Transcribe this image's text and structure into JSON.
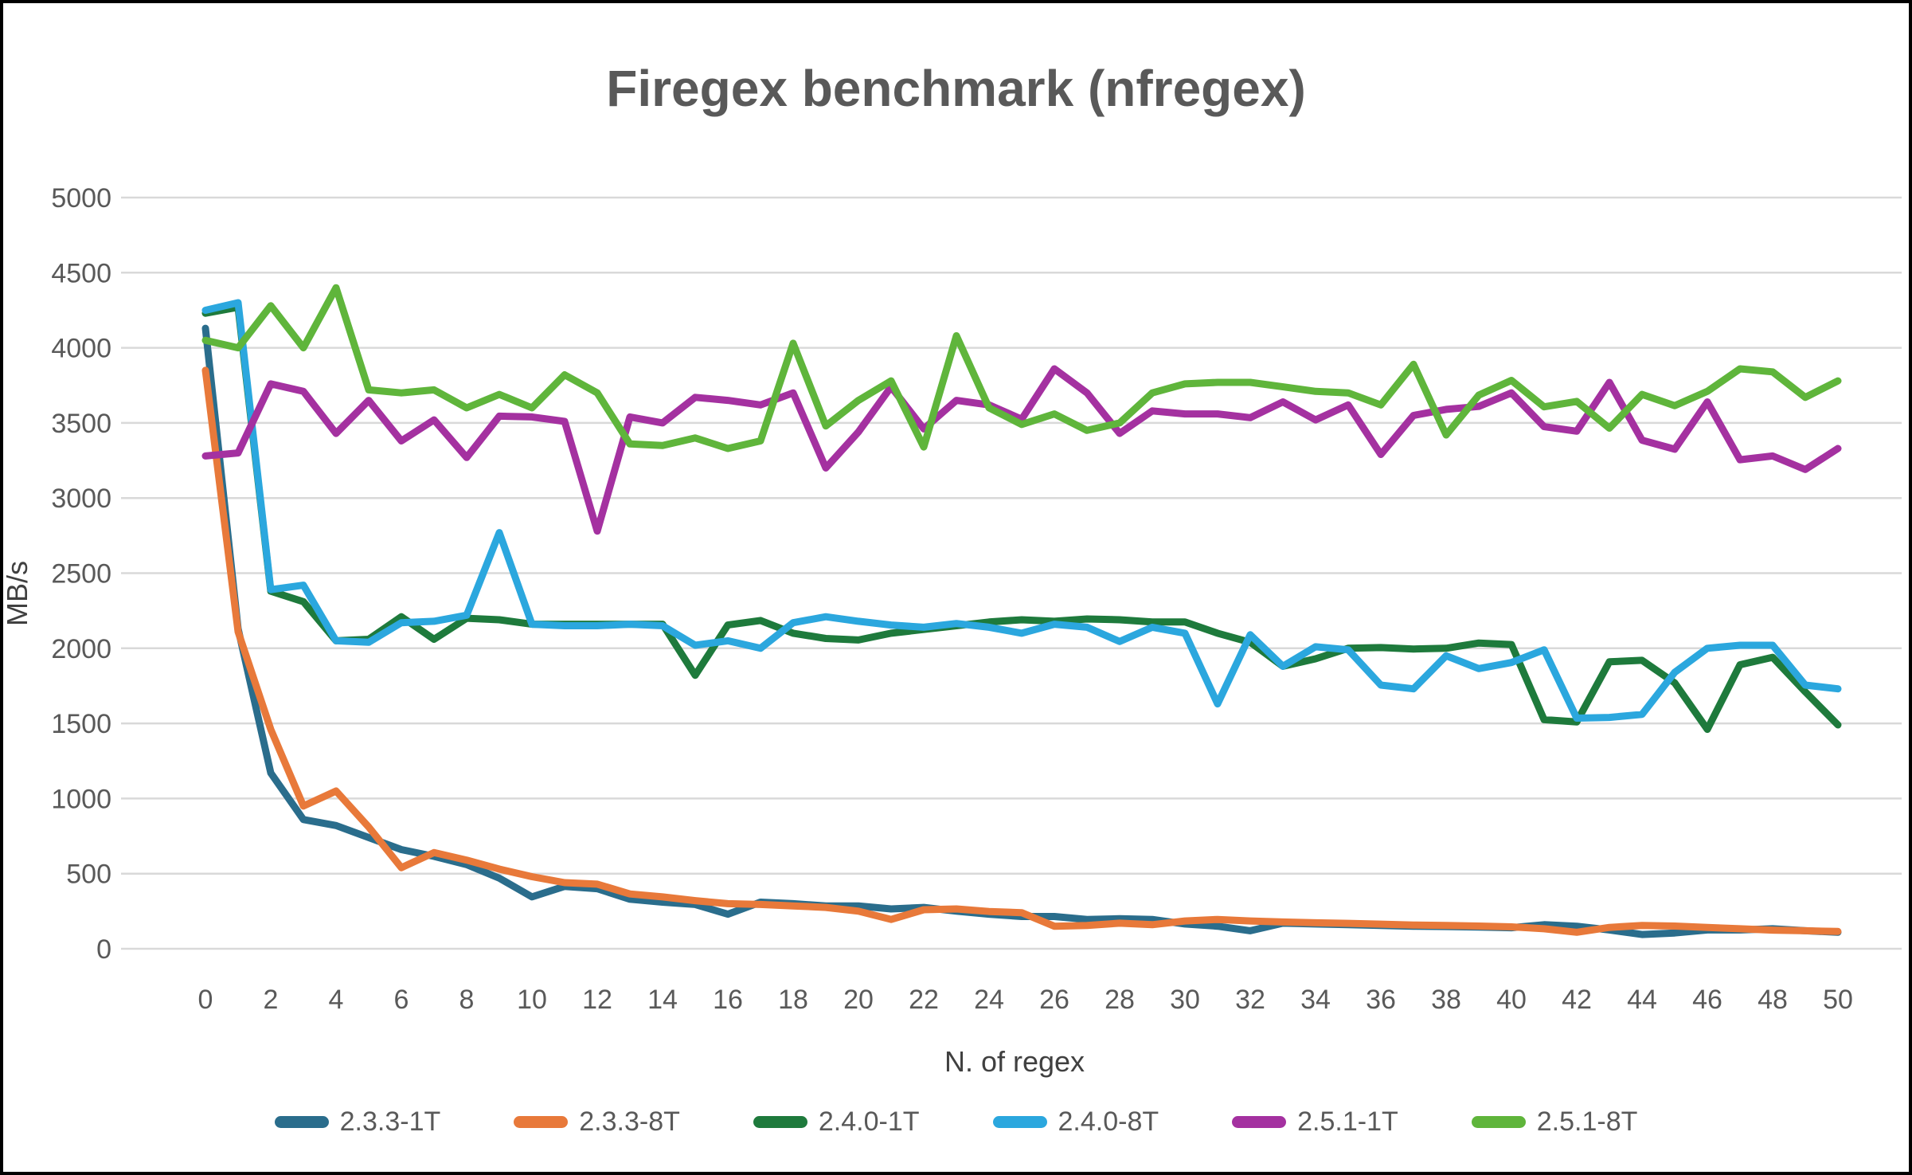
{
  "chart_data": {
    "type": "line",
    "title": "Firegex benchmark (nfregex)",
    "ylabel": "MB/s",
    "xlabel": "N. of regex",
    "ylim": [
      0,
      5000
    ],
    "xlim": [
      0,
      50
    ],
    "grid": "horizontal",
    "legend_position": "bottom",
    "ytick_labels": [
      "0",
      "500",
      "1000",
      "1500",
      "2000",
      "2500",
      "3000",
      "3500",
      "4000",
      "4500",
      "5000"
    ],
    "xtick_labels": [
      "0",
      "2",
      "4",
      "6",
      "8",
      "10",
      "12",
      "14",
      "16",
      "18",
      "20",
      "22",
      "24",
      "26",
      "28",
      "30",
      "32",
      "34",
      "36",
      "38",
      "40",
      "42",
      "44",
      "46",
      "48",
      "50"
    ],
    "x": [
      0,
      1,
      2,
      3,
      4,
      5,
      6,
      7,
      8,
      9,
      10,
      11,
      12,
      13,
      14,
      15,
      16,
      17,
      18,
      19,
      20,
      21,
      22,
      23,
      24,
      25,
      26,
      27,
      28,
      29,
      30,
      31,
      32,
      33,
      34,
      35,
      36,
      37,
      38,
      39,
      40,
      41,
      42,
      43,
      44,
      45,
      46,
      47,
      48,
      49,
      50
    ],
    "series": [
      {
        "name": "2.3.3-1T",
        "color": "#2A6D8C",
        "values": [
          4130,
          2130,
          1170,
          860,
          820,
          740,
          660,
          615,
          560,
          470,
          345,
          415,
          400,
          330,
          310,
          295,
          230,
          310,
          300,
          285,
          285,
          265,
          275,
          250,
          230,
          215,
          215,
          195,
          200,
          195,
          165,
          150,
          120,
          170,
          165,
          160,
          155,
          150,
          148,
          145,
          140,
          160,
          150,
          125,
          95,
          105,
          125,
          125,
          133,
          120,
          110
        ]
      },
      {
        "name": "2.3.3-8T",
        "color": "#E8793A",
        "values": [
          3850,
          2110,
          1460,
          950,
          1050,
          810,
          540,
          640,
          590,
          530,
          480,
          440,
          430,
          365,
          345,
          320,
          300,
          295,
          285,
          275,
          250,
          195,
          260,
          265,
          248,
          240,
          150,
          155,
          170,
          160,
          185,
          195,
          185,
          178,
          173,
          169,
          164,
          158,
          155,
          151,
          146,
          133,
          110,
          142,
          155,
          151,
          142,
          133,
          124,
          120,
          115
        ]
      },
      {
        "name": "2.4.0-1T",
        "color": "#1E7A3C",
        "values": [
          4230,
          4270,
          2380,
          2310,
          2050,
          2060,
          2210,
          2060,
          2200,
          2190,
          2160,
          2160,
          2160,
          2160,
          2160,
          1820,
          2155,
          2185,
          2100,
          2065,
          2055,
          2100,
          2125,
          2150,
          2175,
          2190,
          2180,
          2195,
          2190,
          2175,
          2175,
          2100,
          2040,
          1880,
          1930,
          2000,
          2005,
          1995,
          2000,
          2035,
          2025,
          1525,
          1510,
          1910,
          1920,
          1770,
          1460,
          1890,
          1940,
          1710,
          1490
        ]
      },
      {
        "name": "2.4.0-8T",
        "color": "#2BA7DE",
        "values": [
          4250,
          4300,
          2390,
          2420,
          2050,
          2040,
          2170,
          2180,
          2220,
          2770,
          2160,
          2150,
          2150,
          2160,
          2150,
          2020,
          2050,
          2000,
          2170,
          2210,
          2180,
          2155,
          2140,
          2165,
          2140,
          2100,
          2160,
          2140,
          2045,
          2140,
          2100,
          1630,
          2090,
          1880,
          2010,
          1990,
          1755,
          1730,
          1950,
          1865,
          1905,
          1990,
          1535,
          1540,
          1560,
          1840,
          2000,
          2020,
          2020,
          1755,
          1730
        ]
      },
      {
        "name": "2.5.1-1T",
        "color": "#A431A0",
        "values": [
          3280,
          3300,
          3760,
          3710,
          3430,
          3650,
          3380,
          3520,
          3270,
          3545,
          3540,
          3510,
          2780,
          3540,
          3500,
          3670,
          3650,
          3620,
          3700,
          3200,
          3440,
          3740,
          3460,
          3650,
          3620,
          3525,
          3860,
          3700,
          3430,
          3580,
          3560,
          3560,
          3535,
          3640,
          3520,
          3620,
          3290,
          3550,
          3590,
          3610,
          3700,
          3475,
          3445,
          3770,
          3385,
          3325,
          3640,
          3255,
          3280,
          3190,
          3330
        ]
      },
      {
        "name": "2.5.1-8T",
        "color": "#5FB53B",
        "values": [
          4050,
          4000,
          4280,
          4000,
          4400,
          3720,
          3700,
          3720,
          3600,
          3690,
          3600,
          3820,
          3700,
          3360,
          3350,
          3400,
          3330,
          3380,
          4030,
          3480,
          3650,
          3780,
          3340,
          4080,
          3600,
          3490,
          3560,
          3450,
          3500,
          3700,
          3760,
          3770,
          3770,
          3740,
          3710,
          3700,
          3620,
          3890,
          3420,
          3685,
          3783,
          3607,
          3643,
          3465,
          3690,
          3615,
          3710,
          3860,
          3840,
          3670,
          3780
        ]
      }
    ],
    "text_color": "#595959",
    "gridline_color": "#D9D9D9"
  }
}
